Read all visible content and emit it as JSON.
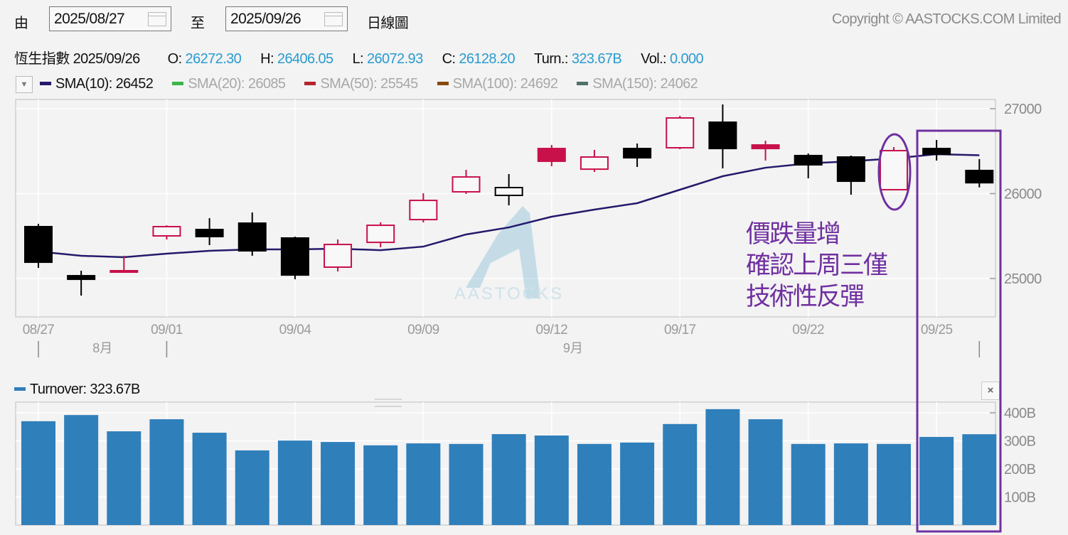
{
  "header": {
    "from_label": "由",
    "from_date": "2025/08/27",
    "to_label": "至",
    "to_date": "2025/09/26",
    "chart_type": "日線圖",
    "copyright": "Copyright © AASTOCKS.COM Limited"
  },
  "quote": {
    "name": "恆生指數",
    "date": "2025/09/26",
    "open_label": "O:",
    "open": "26272.30",
    "high_label": "H:",
    "high": "26406.05",
    "low_label": "L:",
    "low": "26072.93",
    "close_label": "C:",
    "close": "26128.20",
    "turnover_label": "Turn.:",
    "turnover": "323.67B",
    "volume_label": "Vol.:",
    "volume": "0.000"
  },
  "indicators": [
    {
      "label": "SMA(10): 26452",
      "color": "#231a6b",
      "active": true
    },
    {
      "label": "SMA(20): 26085",
      "color": "#3bb54a",
      "active": false
    },
    {
      "label": "SMA(50): 25545",
      "color": "#b3262e",
      "active": false
    },
    {
      "label": "SMA(100): 24692",
      "color": "#8a4a0e",
      "active": false
    },
    {
      "label": "SMA(150): 24062",
      "color": "#52706a",
      "active": false
    }
  ],
  "turnover_legend": "Turnover: 323.67B",
  "watermark": "AASTOCKS",
  "annotation": {
    "lines": [
      "價跌量增",
      "確認上周三僅",
      "技術性反彈"
    ],
    "color": "#7030a0"
  },
  "colors": {
    "up": "#c8104a",
    "down": "#000000",
    "sma10": "#231a6b",
    "turnover": "#2f7fbb",
    "quote_value": "#2a9bd0"
  },
  "chart_data": [
    {
      "type": "candlestick",
      "title": "恆生指數 日線圖",
      "dates": [
        "08/27",
        "08/28",
        "08/29",
        "09/01",
        "09/02",
        "09/03",
        "09/04",
        "09/05",
        "09/08",
        "09/09",
        "09/10",
        "09/11",
        "09/12",
        "09/15",
        "09/16",
        "09/17",
        "09/18",
        "09/19",
        "09/22",
        "09/23",
        "09/24",
        "09/25",
        "09/26"
      ],
      "open": [
        25611,
        25033,
        25075,
        25502,
        25577,
        25652,
        25477,
        25134,
        25426,
        25694,
        26021,
        26071,
        26381,
        26288,
        26531,
        26540,
        26841,
        26531,
        26448,
        26431,
        26046,
        26531,
        26272.3
      ],
      "high": [
        25644,
        25092,
        25268,
        25627,
        25711,
        25778,
        25493,
        25460,
        25661,
        26004,
        26280,
        26230,
        26573,
        26515,
        26590,
        26916,
        27050,
        26623,
        26473,
        26448,
        26548,
        26632,
        26406.05
      ],
      "low": [
        25125,
        24799,
        25075,
        25460,
        25393,
        25268,
        24991,
        25083,
        25368,
        25661,
        25996,
        25862,
        26322,
        26255,
        26314,
        26523,
        26297,
        26389,
        26180,
        25987,
        26037,
        26389,
        26072.93
      ],
      "close": [
        25192,
        24991,
        25092,
        25611,
        25494,
        25326,
        25041,
        25401,
        25627,
        25920,
        26196,
        25979,
        26531,
        26431,
        26422,
        26891,
        26531,
        26573,
        26339,
        26146,
        26506,
        26464,
        26128.2
      ],
      "style": [
        "down",
        "down",
        "up-filled",
        "up",
        "down",
        "down",
        "down",
        "up",
        "up",
        "up",
        "up",
        "down-hollow",
        "up-filled",
        "up",
        "down",
        "up",
        "down",
        "up-filled",
        "down",
        "down",
        "up",
        "down",
        "down"
      ],
      "sma10": {
        "name": "SMA(10)",
        "values": [
          25318,
          25268,
          25251,
          25293,
          25326,
          25343,
          25343,
          25351,
          25334,
          25376,
          25519,
          25602,
          25728,
          25812,
          25887,
          26046,
          26205,
          26305,
          26356,
          26381,
          26414,
          26464,
          26452
        ]
      },
      "y_ticks": [
        "25000",
        "26000",
        "27000"
      ],
      "y_tick_values": [
        25000,
        26000,
        27000
      ],
      "ylim": [
        24600,
        27110
      ],
      "x_tick_labels": [
        "08/27",
        "09/01",
        "09/04",
        "09/09",
        "09/12",
        "09/17",
        "09/22",
        "09/25"
      ],
      "x_tick_index": [
        0,
        3,
        6,
        9,
        12,
        15,
        18,
        21
      ],
      "month_labels": [
        {
          "label": "8月",
          "between": [
            0,
            3
          ]
        },
        {
          "label": "9月",
          "between": [
            3,
            22
          ]
        }
      ],
      "grid": true
    },
    {
      "type": "bar",
      "title": "Turnover",
      "categories": [
        "08/27",
        "08/28",
        "08/29",
        "09/01",
        "09/02",
        "09/03",
        "09/04",
        "09/05",
        "09/08",
        "09/09",
        "09/10",
        "09/11",
        "09/12",
        "09/15",
        "09/16",
        "09/17",
        "09/18",
        "09/19",
        "09/22",
        "09/23",
        "09/24",
        "09/25",
        "09/26"
      ],
      "values": [
        370,
        392,
        334,
        377,
        329,
        266,
        301,
        296,
        284,
        291,
        289,
        324,
        319,
        289,
        294,
        360,
        413,
        377,
        289,
        291,
        289,
        314,
        323.67
      ],
      "unit": "B",
      "y_ticks": [
        "100B",
        "200B",
        "300B",
        "400B"
      ],
      "y_tick_values": [
        100,
        200,
        300,
        400
      ],
      "ylim": [
        0,
        440
      ],
      "grid": true
    }
  ]
}
